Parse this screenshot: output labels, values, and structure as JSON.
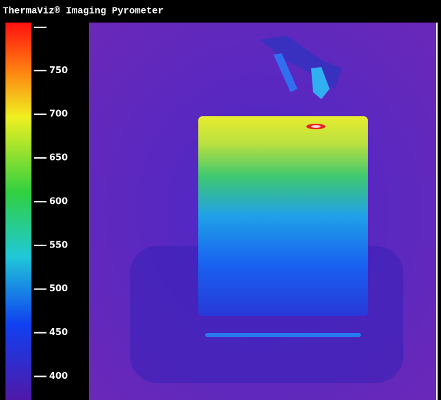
{
  "window": {
    "title": "ThermaViz® Imaging Pyrometer"
  },
  "colorbar": {
    "lim": [
      373,
      805
    ],
    "ticks": [
      750,
      700,
      650,
      600,
      550,
      500,
      450,
      400
    ]
  }
}
